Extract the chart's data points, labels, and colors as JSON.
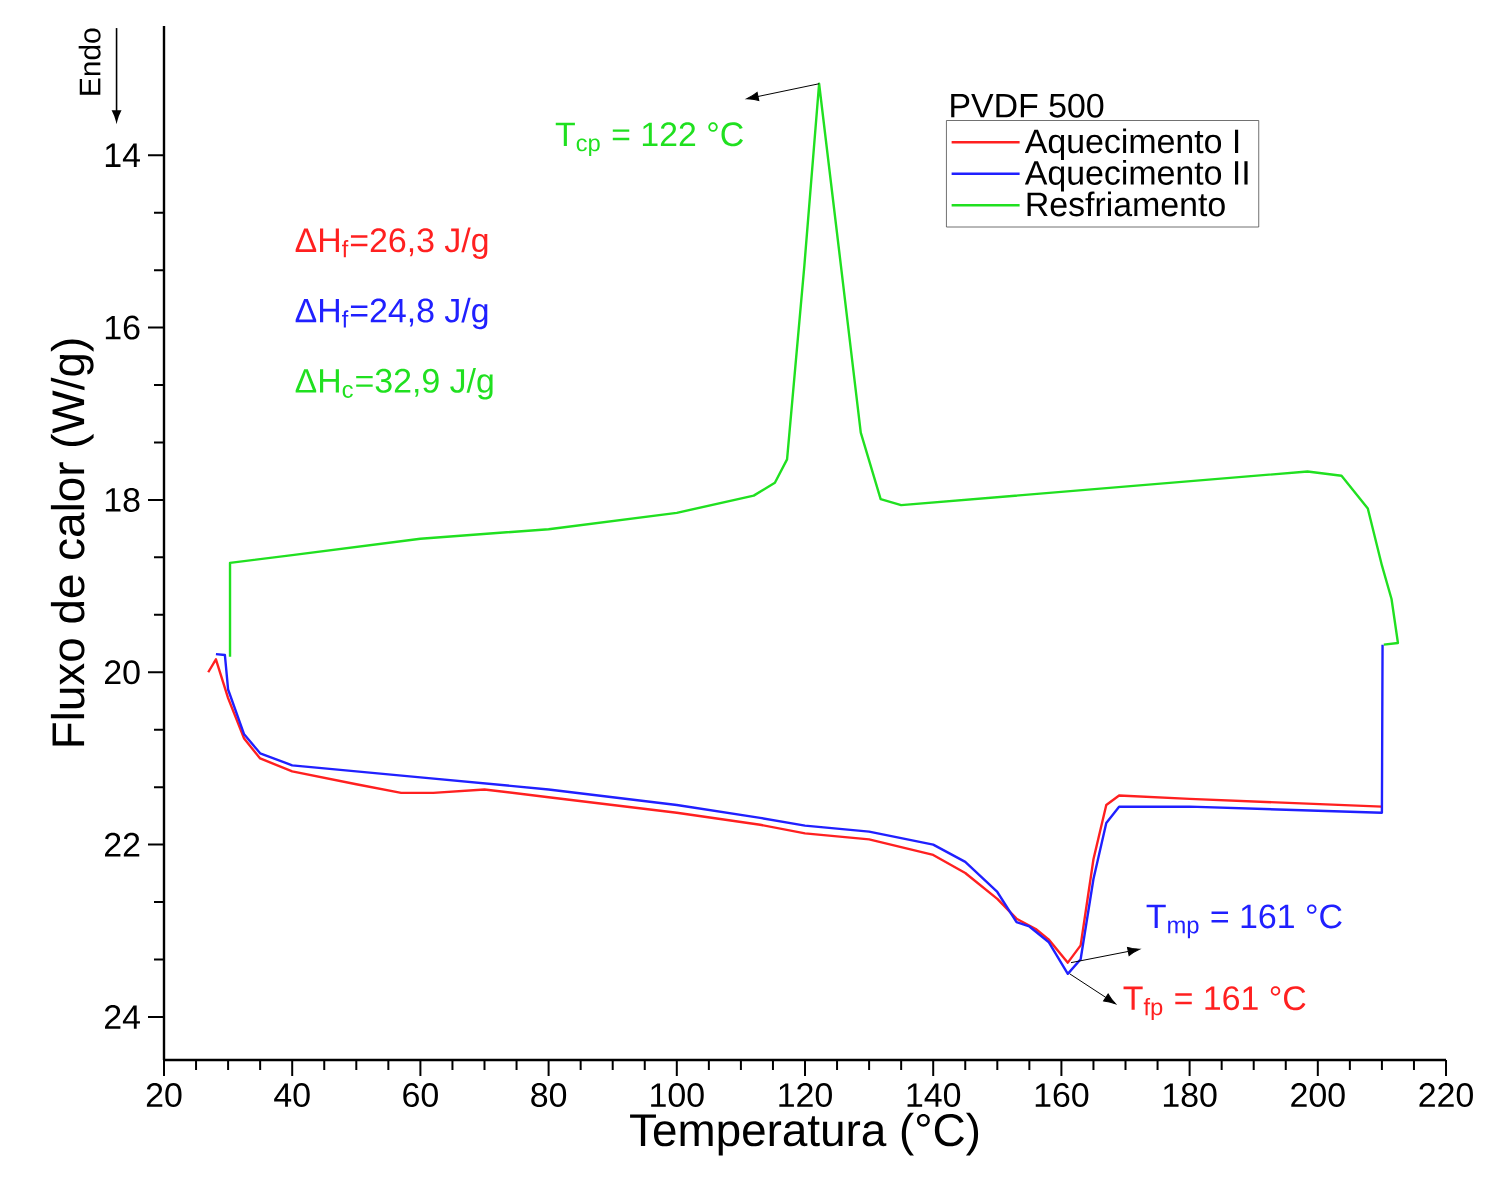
{
  "chart_data": {
    "type": "line",
    "xlabel": "Temperatura (°C)",
    "ylabel": "Fluxo de calor (W/g)",
    "legend_title": "PVDF 500",
    "legend": "top right",
    "xlim": [
      20,
      220
    ],
    "ylim": [
      24.5,
      12.5
    ],
    "xticks": [
      20,
      40,
      60,
      80,
      100,
      120,
      140,
      160,
      180,
      200,
      220
    ],
    "yticks": [
      14,
      16,
      18,
      20,
      22,
      24
    ],
    "series": [
      {
        "name": "Aquecimento I",
        "color": "#ff2020",
        "x": [
          26.9,
          28.1,
          30,
          32.5,
          35,
          40,
          50,
          57,
          62,
          70,
          80,
          100,
          113,
          120,
          130,
          140,
          145,
          150,
          153,
          156,
          158,
          161,
          163,
          165,
          167,
          169,
          180,
          210
        ],
        "values": [
          20.0,
          19.85,
          20.3,
          20.77,
          21.0,
          21.15,
          21.3,
          21.4,
          21.4,
          21.36,
          21.45,
          21.63,
          21.77,
          21.87,
          21.94,
          22.12,
          22.33,
          22.63,
          22.86,
          22.98,
          23.1,
          23.37,
          23.17,
          22.17,
          21.54,
          21.43,
          21.47,
          21.56
        ]
      },
      {
        "name": "Aquecimento II",
        "color": "#2020ff",
        "x": [
          28.1,
          29.5,
          30,
          32.5,
          35,
          40,
          60,
          80,
          100,
          113,
          120,
          130,
          140,
          145,
          150,
          153,
          155,
          158,
          161,
          163,
          165,
          167,
          169,
          180,
          210,
          210.1
        ],
        "values": [
          19.79,
          19.8,
          20.2,
          20.72,
          20.94,
          21.08,
          21.22,
          21.36,
          21.54,
          21.69,
          21.78,
          21.85,
          22.0,
          22.2,
          22.55,
          22.9,
          22.95,
          23.13,
          23.5,
          23.33,
          22.4,
          21.75,
          21.56,
          21.56,
          21.63,
          19.68
        ]
      },
      {
        "name": "Resfriamento",
        "color": "#20e020",
        "x": [
          30.3,
          30.3,
          40,
          60,
          80,
          100,
          112,
          115.3,
          117.2,
          119.9,
          122.2,
          125.6,
          128.7,
          131.8,
          135,
          198.4,
          203.7,
          207.8,
          210,
          211.5,
          212.5,
          210.3
        ],
        "values": [
          19.82,
          18.73,
          18.64,
          18.45,
          18.34,
          18.15,
          17.95,
          17.8,
          17.53,
          15.28,
          13.17,
          15.28,
          17.22,
          17.99,
          18.06,
          17.67,
          17.72,
          18.1,
          18.76,
          19.15,
          19.66,
          19.68
        ]
      }
    ],
    "annotations": [
      {
        "text": "T$_{cp}$ = 122 °C",
        "x": 122.2,
        "y": 13.17
      },
      {
        "text": "T$_{mp}$ = 161 °C",
        "x": 161.5,
        "y": 23.37
      },
      {
        "text": "T$_{fp}$ = 161 °C",
        "x": 161.3,
        "y": 23.5
      },
      "ΔH$_{f}$=26,3 J/g",
      "ΔH$_{f}$=24,8 J/g",
      "ΔH$_{c}$=32,9 J/g",
      "Endo"
    ]
  }
}
